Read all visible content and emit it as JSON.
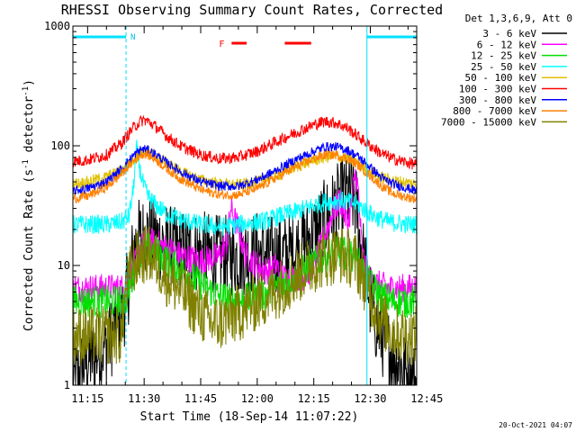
{
  "chart_data": {
    "type": "line",
    "title": "RHESSI Observing Summary Count Rates, Corrected",
    "xlabel": "Start Time (18-Sep-14 11:07:22)",
    "ylabel_main": "Corrected Count Rate (s",
    "ylabel_sup1": "-1",
    "ylabel_mid": " detector",
    "ylabel_sup2": "-1",
    "ylabel_end": ")",
    "y_scale": "log",
    "ylim": [
      1,
      1000
    ],
    "xlim_minutes": [
      11.1,
      102.3
    ],
    "x_ticks": [
      {
        "label": "11:15",
        "minutes": 15
      },
      {
        "label": "11:30",
        "minutes": 30
      },
      {
        "label": "11:45",
        "minutes": 45
      },
      {
        "label": "12:00",
        "minutes": 60
      },
      {
        "label": "12:15",
        "minutes": 75
      },
      {
        "label": "12:30",
        "minutes": 90
      },
      {
        "label": "12:45",
        "minutes": 105
      }
    ],
    "y_ticks": [
      {
        "label": "1",
        "value": 1
      },
      {
        "label": "10",
        "value": 10
      },
      {
        "label": "100",
        "value": 100
      },
      {
        "label": "1000",
        "value": 1000
      }
    ],
    "legend_header": "Det 1,3,6,9, Att 0",
    "legend_position": "right",
    "night_label": "N",
    "flare_label": "F",
    "timestamp": "20-Oct-2021 04:07",
    "series": [
      {
        "name": "3 - 6 keV",
        "color": "#000000",
        "x": [
          11.1,
          14,
          17,
          20,
          24,
          25.5,
          27,
          28,
          29,
          31,
          33,
          36,
          40,
          45,
          50,
          55,
          60,
          63,
          66,
          70,
          72,
          74,
          76,
          78,
          80,
          82,
          83,
          85,
          86.5,
          87,
          88,
          89,
          90,
          92,
          95,
          98,
          100,
          102.3
        ],
        "y": [
          1,
          1.5,
          1.8,
          2.2,
          3.5,
          6,
          12,
          16,
          17,
          18,
          17,
          15,
          13,
          13,
          12,
          12,
          13,
          12,
          12,
          13,
          15,
          17,
          20,
          24,
          28,
          35,
          38,
          40,
          30,
          18,
          12,
          8,
          5,
          3,
          2,
          1.5,
          1.2,
          1
        ]
      },
      {
        "name": "6 - 12 keV",
        "color": "#ff00ff",
        "x": [
          11.1,
          20,
          25,
          27,
          29,
          31,
          34,
          40,
          45,
          50,
          52,
          53,
          55,
          57,
          60,
          63,
          65,
          67,
          70,
          72,
          74,
          76,
          78,
          80,
          82,
          83,
          84,
          85,
          86,
          86.8,
          87.5,
          88,
          89,
          90,
          92,
          95,
          100,
          102.3
        ],
        "y": [
          6.5,
          6.5,
          6.5,
          9,
          14,
          16,
          15,
          12,
          11,
          12,
          16,
          30,
          20,
          12,
          10,
          9,
          10,
          8,
          8,
          8,
          9,
          12,
          18,
          28,
          35,
          28,
          22,
          32,
          60,
          42,
          18,
          12,
          9,
          7.5,
          7,
          6.5,
          6.5,
          6.5
        ]
      },
      {
        "name": "12 - 25 keV",
        "color": "#00e000",
        "x": [
          11.1,
          20,
          25,
          27,
          29,
          31,
          33,
          36,
          40,
          45,
          50,
          55,
          60,
          63,
          66,
          70,
          74,
          78,
          82,
          86,
          88,
          90,
          93,
          96,
          100,
          102.3
        ],
        "y": [
          5,
          5,
          5,
          8,
          13,
          14,
          13,
          11,
          9,
          7,
          5.5,
          5,
          5.5,
          6,
          7,
          8,
          10,
          12,
          13,
          12,
          9,
          7,
          5.5,
          5,
          5,
          5
        ]
      },
      {
        "name": "25 - 50 keV",
        "color": "#00ffff",
        "x": [
          11.1,
          15,
          20,
          24,
          26,
          27,
          28,
          29,
          30,
          31,
          33,
          36,
          40,
          45,
          50,
          55,
          60,
          63,
          66,
          70,
          74,
          78,
          82,
          86,
          88,
          90,
          92,
          95,
          100,
          102.3
        ],
        "y": [
          22,
          22,
          22,
          23,
          26,
          40,
          95,
          60,
          45,
          38,
          32,
          27,
          24,
          22,
          21,
          22,
          23,
          24,
          26,
          28,
          31,
          34,
          35,
          33,
          30,
          27,
          25,
          23,
          22,
          22
        ]
      },
      {
        "name": "50 - 100 keV",
        "color": "#e0c000",
        "x": [
          11.1,
          15,
          20,
          24,
          27,
          29,
          30,
          32,
          36,
          40,
          45,
          50,
          55,
          60,
          65,
          70,
          75,
          80,
          83,
          86,
          89,
          92,
          95,
          100,
          102.3
        ],
        "y": [
          48,
          50,
          55,
          62,
          75,
          88,
          90,
          86,
          72,
          60,
          52,
          48,
          47,
          50,
          56,
          66,
          76,
          82,
          80,
          74,
          64,
          56,
          52,
          49,
          48
        ]
      },
      {
        "name": "100 - 300 keV",
        "color": "#ff0000",
        "x": [
          11.1,
          15,
          20,
          24,
          27,
          29,
          30,
          31,
          33,
          36,
          40,
          45,
          50,
          55,
          60,
          65,
          70,
          75,
          78,
          81,
          84,
          87,
          90,
          93,
          96,
          100,
          102.3
        ],
        "y": [
          74,
          76,
          84,
          105,
          140,
          160,
          165,
          160,
          145,
          120,
          98,
          84,
          78,
          80,
          90,
          108,
          128,
          150,
          160,
          155,
          140,
          118,
          100,
          86,
          78,
          72,
          70
        ]
      },
      {
        "name": "300 - 800 keV",
        "color": "#0000ff",
        "x": [
          11.1,
          15,
          20,
          24,
          27,
          29,
          30,
          31,
          33,
          36,
          40,
          45,
          50,
          55,
          60,
          65,
          70,
          75,
          78,
          81,
          84,
          87,
          90,
          93,
          96,
          100,
          102.3
        ],
        "y": [
          42,
          44,
          50,
          64,
          82,
          92,
          94,
          92,
          85,
          72,
          60,
          50,
          46,
          46,
          52,
          62,
          76,
          90,
          98,
          98,
          92,
          80,
          66,
          54,
          48,
          44,
          42
        ]
      },
      {
        "name": "800 - 7000 keV",
        "color": "#ff8000",
        "x": [
          11.1,
          15,
          20,
          24,
          27,
          29,
          30,
          31,
          33,
          36,
          40,
          45,
          50,
          55,
          60,
          65,
          70,
          75,
          78,
          81,
          84,
          87,
          90,
          93,
          96,
          100,
          102.3
        ],
        "y": [
          36,
          38,
          45,
          58,
          74,
          84,
          86,
          84,
          77,
          64,
          52,
          43,
          39,
          39,
          44,
          54,
          66,
          78,
          84,
          84,
          78,
          68,
          56,
          46,
          40,
          37,
          36
        ]
      },
      {
        "name": "7000 - 15000 keV",
        "color": "#808000",
        "x": [
          11.1,
          20,
          24,
          25,
          27,
          29,
          31,
          33,
          36,
          40,
          45,
          48,
          50,
          55,
          60,
          63,
          66,
          70,
          74,
          78,
          82,
          86,
          88,
          90,
          93,
          96,
          100,
          102.3
        ],
        "y": [
          2.6,
          2.6,
          2.6,
          6,
          10,
          12,
          12.5,
          11,
          8,
          6,
          4,
          3.3,
          3.3,
          4,
          5,
          5.5,
          6.5,
          8,
          10,
          11.5,
          12.5,
          11,
          8,
          5.5,
          3.5,
          2.8,
          2.6,
          2.6
        ]
      }
    ],
    "night_intervals_minutes": [
      [
        11.1,
        25.2
      ],
      [
        89.1,
        102.3
      ]
    ],
    "flare_intervals_minutes": [
      [
        53.2,
        57.2
      ],
      [
        67.3,
        74.3
      ]
    ],
    "vertical_dashed_minutes": [
      25.2,
      102.3
    ],
    "vertical_solid_minutes": [
      89.1
    ]
  }
}
